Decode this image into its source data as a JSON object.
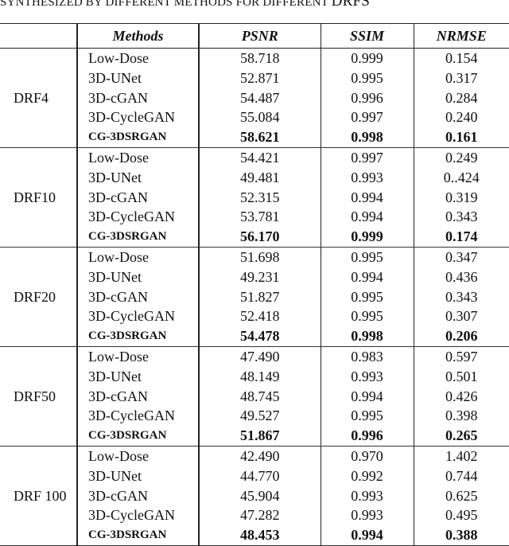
{
  "caption": {
    "text": "Synthesized by different methods for different ",
    "tail": "DRFs"
  },
  "headers": [
    "",
    "Methods",
    "PSNR",
    "SSIM",
    "NRMSE"
  ],
  "groups": [
    {
      "label": "DRF4",
      "rows": [
        {
          "method": "Low-Dose",
          "psnr": "58.718",
          "ssim": "0.999",
          "nrmse": "0.154"
        },
        {
          "method": "3D-UNet",
          "psnr": "52.871",
          "ssim": "0.995",
          "nrmse": "0.317"
        },
        {
          "method": "3D-cGAN",
          "psnr": "54.487",
          "ssim": "0.996",
          "nrmse": "0.284"
        },
        {
          "method": "3D-CycleGAN",
          "psnr": "55.084",
          "ssim": "0.997",
          "nrmse": "0.240"
        },
        {
          "method": "CG-3DSRGAN",
          "psnr": "58.621",
          "ssim": "0.998",
          "nrmse": "0.161",
          "bold": true
        }
      ]
    },
    {
      "label": "DRF10",
      "rows": [
        {
          "method": "Low-Dose",
          "psnr": "54.421",
          "ssim": "0.997",
          "nrmse": "0.249"
        },
        {
          "method": "3D-UNet",
          "psnr": "49.481",
          "ssim": "0.993",
          "nrmse": "0..424"
        },
        {
          "method": "3D-cGAN",
          "psnr": "52.315",
          "ssim": "0.994",
          "nrmse": "0.319"
        },
        {
          "method": "3D-CycleGAN",
          "psnr": "53.781",
          "ssim": "0.994",
          "nrmse": "0.343"
        },
        {
          "method": "CG-3DSRGAN",
          "psnr": "56.170",
          "ssim": "0.999",
          "nrmse": "0.174",
          "bold": true
        }
      ]
    },
    {
      "label": "DRF20",
      "rows": [
        {
          "method": "Low-Dose",
          "psnr": "51.698",
          "ssim": "0.995",
          "nrmse": "0.347"
        },
        {
          "method": "3D-UNet",
          "psnr": "49.231",
          "ssim": "0.994",
          "nrmse": "0.436"
        },
        {
          "method": "3D-cGAN",
          "psnr": "51.827",
          "ssim": "0.995",
          "nrmse": "0.343"
        },
        {
          "method": "3D-CycleGAN",
          "psnr": "52.418",
          "ssim": "0.995",
          "nrmse": "0.307"
        },
        {
          "method": "CG-3DSRGAN",
          "psnr": "54.478",
          "ssim": "0.998",
          "nrmse": "0.206",
          "bold": true
        }
      ]
    },
    {
      "label": "DRF50",
      "rows": [
        {
          "method": "Low-Dose",
          "psnr": "47.490",
          "ssim": "0.983",
          "nrmse": "0.597"
        },
        {
          "method": "3D-UNet",
          "psnr": "48.149",
          "ssim": "0.993",
          "nrmse": "0.501"
        },
        {
          "method": "3D-cGAN",
          "psnr": "48.745",
          "ssim": "0.994",
          "nrmse": "0.426"
        },
        {
          "method": "3D-CycleGAN",
          "psnr": "49.527",
          "ssim": "0.995",
          "nrmse": "0.398"
        },
        {
          "method": "CG-3DSRGAN",
          "psnr": "51.867",
          "ssim": "0.996",
          "nrmse": "0.265",
          "bold": true
        }
      ]
    },
    {
      "label": "DRF 100",
      "rows": [
        {
          "method": "Low-Dose",
          "psnr": "42.490",
          "ssim": "0.970",
          "nrmse": "1.402"
        },
        {
          "method": "3D-UNet",
          "psnr": "44.770",
          "ssim": "0.992",
          "nrmse": "0.744"
        },
        {
          "method": "3D-cGAN",
          "psnr": "45.904",
          "ssim": "0.993",
          "nrmse": "0.625"
        },
        {
          "method": "3D-CycleGAN",
          "psnr": "47.282",
          "ssim": "0.993",
          "nrmse": "0.495"
        },
        {
          "method": "CG-3DSRGAN",
          "psnr": "48.453",
          "ssim": "0.994",
          "nrmse": "0.388",
          "bold": true
        }
      ]
    }
  ]
}
